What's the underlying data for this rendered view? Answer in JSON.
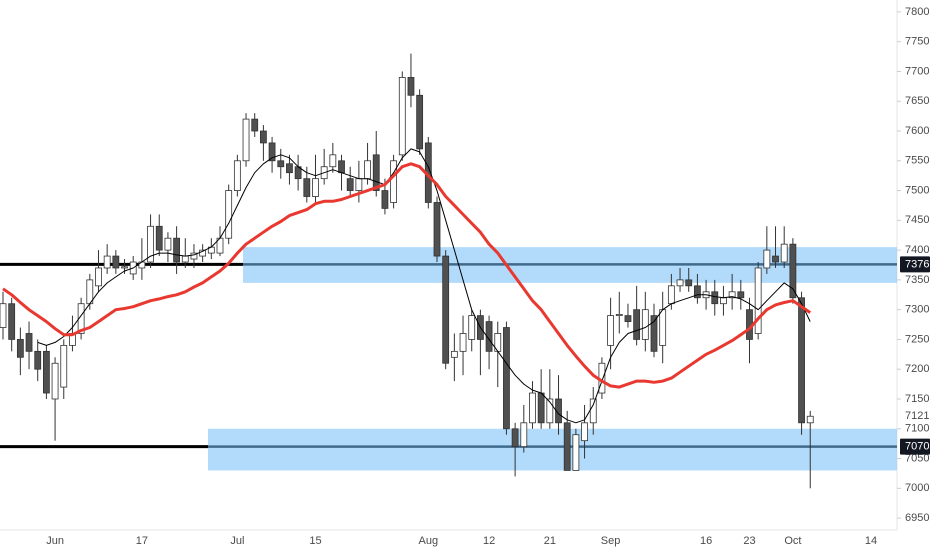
{
  "chart_data": {
    "type": "candlestick",
    "categories": [
      null,
      null,
      null,
      null,
      null,
      null,
      "Jun",
      null,
      null,
      null,
      null,
      null,
      null,
      null,
      null,
      null,
      "17",
      null,
      null,
      null,
      null,
      null,
      null,
      null,
      null,
      null,
      null,
      "Jul",
      null,
      null,
      null,
      null,
      null,
      null,
      null,
      null,
      "15",
      null,
      null,
      null,
      null,
      null,
      null,
      null,
      null,
      null,
      null,
      null,
      null,
      "Aug",
      null,
      null,
      null,
      null,
      null,
      null,
      "12",
      null,
      null,
      null,
      null,
      null,
      null,
      "21",
      null,
      null,
      null,
      null,
      null,
      null,
      "Sep",
      null,
      null,
      null,
      null,
      null,
      null,
      null,
      null,
      null,
      null,
      "16",
      null,
      null,
      null,
      null,
      "23",
      null,
      null,
      null,
      null,
      "Oct",
      null,
      null,
      null,
      null,
      null,
      null,
      null,
      null,
      "14"
    ],
    "open": [
      7270,
      7310,
      7250,
      7260,
      7230,
      7230,
      7150,
      7170,
      7240,
      7260,
      7310,
      7340,
      7370,
      7390,
      7370,
      7360,
      7370,
      7380,
      7440,
      7400,
      7420,
      7380,
      7385,
      7390,
      7395,
      7395,
      7420,
      7500,
      7550,
      7620,
      7600,
      7580,
      7550,
      7545,
      7540,
      7520,
      7490,
      7520,
      7540,
      7550,
      7520,
      7500,
      7520,
      7560,
      7500,
      7480,
      7560,
      7690,
      7660,
      7580,
      7480,
      7390,
      7220,
      7230,
      7250,
      7290,
      7280,
      7230,
      7270,
      7100,
      7070,
      7110,
      7160,
      7110,
      7150,
      7110,
      7030,
      7080,
      7110,
      7160,
      7240,
      7290,
      7290,
      7300,
      7250,
      7290,
      7240,
      7310,
      7340,
      7350,
      7340,
      7320,
      7330,
      7310,
      7320,
      7330,
      7300,
      7260,
      7370,
      7390,
      7380,
      7410,
      7320,
      7110,
      null,
      null,
      null,
      null,
      null,
      null,
      null
    ],
    "high": [
      7330,
      7320,
      7270,
      7280,
      7250,
      7240,
      7220,
      7250,
      7290,
      7320,
      7360,
      7400,
      7410,
      7400,
      7385,
      7390,
      7420,
      7460,
      7460,
      7430,
      7440,
      7420,
      7410,
      7410,
      7420,
      7440,
      7510,
      7560,
      7630,
      7630,
      7610,
      7590,
      7570,
      7560,
      7560,
      7540,
      7560,
      7570,
      7580,
      7560,
      7540,
      7550,
      7580,
      7600,
      7520,
      7560,
      7700,
      7730,
      7670,
      7590,
      7490,
      7400,
      7260,
      7290,
      7300,
      7300,
      7290,
      7280,
      7280,
      7110,
      7140,
      7180,
      7200,
      7200,
      7190,
      7130,
      7100,
      7140,
      7170,
      7220,
      7320,
      7330,
      7310,
      7340,
      7330,
      7310,
      7330,
      7360,
      7370,
      7370,
      7360,
      7350,
      7350,
      7340,
      7360,
      7350,
      7320,
      7380,
      7440,
      7440,
      7440,
      7420,
      7330,
      7130,
      null,
      null,
      null,
      null,
      null,
      null,
      null
    ],
    "low": [
      7250,
      7230,
      7190,
      7200,
      7180,
      7150,
      7080,
      7150,
      7230,
      7250,
      7300,
      7330,
      7360,
      7360,
      7360,
      7350,
      7350,
      7370,
      7390,
      7380,
      7360,
      7370,
      7370,
      7380,
      7385,
      7390,
      7410,
      7490,
      7540,
      7590,
      7550,
      7530,
      7520,
      7510,
      7500,
      7480,
      7480,
      7510,
      7530,
      7500,
      7490,
      7480,
      7510,
      7490,
      7460,
      7470,
      7550,
      7640,
      7560,
      7470,
      7380,
      7200,
      7180,
      7190,
      7230,
      7190,
      7200,
      7170,
      7090,
      7020,
      7060,
      7100,
      7100,
      7100,
      7090,
      7030,
      7030,
      7050,
      7090,
      7150,
      7200,
      7260,
      7270,
      7240,
      7230,
      7220,
      7210,
      7300,
      7330,
      7330,
      7310,
      7300,
      7290,
      7290,
      7300,
      7300,
      7210,
      7250,
      7360,
      7370,
      7370,
      7310,
      7090,
      7000,
      null,
      null,
      null,
      null,
      null,
      null,
      null
    ],
    "close": [
      7310,
      7250,
      7220,
      7230,
      7200,
      7160,
      7210,
      7240,
      7260,
      7310,
      7350,
      7370,
      7390,
      7370,
      7372,
      7380,
      7380,
      7440,
      7400,
      7420,
      7380,
      7390,
      7395,
      7400,
      7405,
      7420,
      7500,
      7550,
      7620,
      7600,
      7580,
      7550,
      7540,
      7530,
      7520,
      7490,
      7520,
      7540,
      7560,
      7530,
      7500,
      7520,
      7550,
      7500,
      7470,
      7550,
      7690,
      7660,
      7570,
      7480,
      7390,
      7210,
      7230,
      7260,
      7290,
      7250,
      7230,
      7260,
      7100,
      7070,
      7110,
      7160,
      7110,
      7150,
      7110,
      7030,
      7090,
      7110,
      7150,
      7210,
      7290,
      7292,
      7280,
      7250,
      7300,
      7230,
      7300,
      7340,
      7350,
      7340,
      7320,
      7330,
      7310,
      7320,
      7330,
      7320,
      7250,
      7370,
      7400,
      7380,
      7410,
      7320,
      7110,
      7121,
      null,
      null,
      null,
      null,
      null,
      null,
      null
    ],
    "up_color": "#ffffff",
    "down_color": "#505050",
    "lines": [
      {
        "color": "#000000",
        "values": [
          null,
          null,
          null,
          null,
          7245,
          7240,
          7245,
          7255,
          7270,
          7290,
          7310,
          7330,
          7345,
          7355,
          7365,
          7370,
          7380,
          7390,
          7395,
          7395,
          7392,
          7390,
          7392,
          7398,
          7405,
          7420,
          7445,
          7475,
          7505,
          7530,
          7545,
          7555,
          7560,
          7555,
          7540,
          7530,
          7525,
          7530,
          7535,
          7530,
          7525,
          7520,
          7520,
          7515,
          7510,
          7530,
          7555,
          7570,
          7565,
          7540,
          7500,
          7450,
          7400,
          7350,
          7300,
          7270,
          7250,
          7230,
          7210,
          7190,
          7175,
          7165,
          7160,
          7145,
          7125,
          7115,
          7110,
          7115,
          7140,
          7180,
          7220,
          7245,
          7260,
          7265,
          7270,
          7280,
          7300,
          7310,
          7315,
          7320,
          7325,
          7325,
          7322,
          7320,
          7322,
          7318,
          7310,
          7300,
          7315,
          7330,
          7345,
          7335,
          7310,
          7280,
          null,
          null,
          null,
          null,
          null,
          null,
          null
        ]
      },
      {
        "color": "#e8382f",
        "values": [
          7335,
          7325,
          7312,
          7300,
          7290,
          7280,
          7268,
          7258,
          7258,
          7265,
          7270,
          7280,
          7290,
          7300,
          7302,
          7305,
          7310,
          7315,
          7318,
          7322,
          7325,
          7330,
          7338,
          7345,
          7355,
          7365,
          7378,
          7395,
          7410,
          7420,
          7430,
          7440,
          7448,
          7458,
          7463,
          7468,
          7478,
          7482,
          7482,
          7485,
          7490,
          7495,
          7500,
          7505,
          7510,
          7525,
          7540,
          7545,
          7540,
          7525,
          7510,
          7490,
          7475,
          7460,
          7445,
          7430,
          7410,
          7395,
          7375,
          7355,
          7335,
          7315,
          7300,
          7280,
          7260,
          7240,
          7222,
          7205,
          7190,
          7180,
          7172,
          7170,
          7175,
          7180,
          7180,
          7178,
          7180,
          7185,
          7195,
          7205,
          7215,
          7225,
          7232,
          7240,
          7248,
          7258,
          7268,
          7285,
          7300,
          7308,
          7312,
          7315,
          7305,
          7295,
          null,
          null,
          null,
          null,
          null,
          null,
          null
        ]
      }
    ],
    "levels": [
      7376,
      7070
    ],
    "zones": [
      [
        7345,
        7405
      ],
      [
        7030,
        7100
      ]
    ],
    "last_price": 7121,
    "ylim": [
      6930,
      7820
    ],
    "yticks": [
      6950,
      7000,
      7050,
      7100,
      7150,
      7200,
      7250,
      7300,
      7350,
      7400,
      7450,
      7500,
      7550,
      7600,
      7650,
      7700,
      7750,
      7800
    ]
  }
}
